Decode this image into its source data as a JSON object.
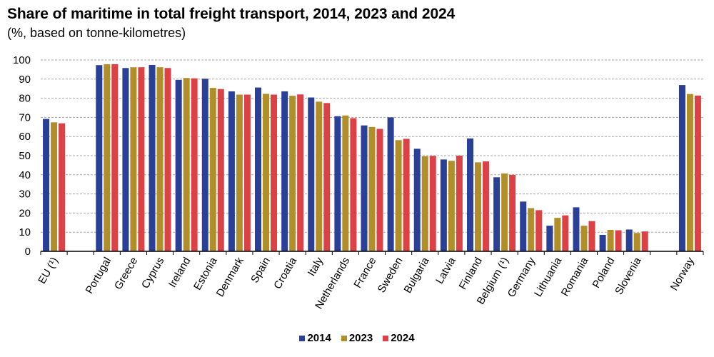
{
  "chart_data": {
    "type": "bar",
    "title": "Share of maritime in total freight transport, 2014, 2023 and 2024",
    "subtitle": "(%, based on tonne-kilometres)",
    "xlabel": "",
    "ylabel": "",
    "ylim": [
      0,
      100
    ],
    "yticks": [
      0,
      10,
      20,
      30,
      40,
      50,
      60,
      70,
      80,
      90,
      100
    ],
    "grid": true,
    "legend_position": "bottom-center",
    "categories": [
      "EU (¹)",
      "",
      "Portugal",
      "Greece",
      "Cyprus",
      "Ireland",
      "Estonia",
      "Denmark",
      "Spain",
      "Croatia",
      "Italy",
      "Netherlands",
      "France",
      "Sweden",
      "Bulgaria",
      "Latvia",
      "Finland",
      "Belgium (¹)",
      "Germany",
      "Lithuania",
      "Romania",
      "Poland",
      "Slovenia",
      "",
      "Norway"
    ],
    "series": [
      {
        "name": "2014",
        "color": "#2a3f96",
        "values": [
          69.2,
          null,
          97.3,
          95.8,
          97.4,
          89.6,
          90.2,
          83.6,
          85.6,
          83.6,
          80.4,
          70.6,
          65.8,
          70.0,
          53.6,
          48.0,
          59.0,
          38.7,
          26.0,
          13.4,
          23.0,
          8.6,
          11.4,
          null,
          86.9
        ]
      },
      {
        "name": "2023",
        "color": "#b08e2a",
        "values": [
          67.4,
          null,
          97.8,
          96.2,
          96.2,
          90.6,
          85.4,
          81.9,
          82.3,
          81.3,
          78.2,
          71.0,
          65.0,
          58.1,
          49.7,
          47.3,
          46.5,
          40.7,
          22.6,
          17.5,
          13.4,
          11.2,
          9.6,
          null,
          82.2
        ]
      },
      {
        "name": "2024",
        "color": "#dc4146",
        "values": [
          66.9,
          null,
          97.8,
          96.2,
          95.8,
          90.4,
          84.8,
          81.9,
          81.9,
          82.0,
          77.5,
          69.6,
          64.0,
          58.8,
          49.9,
          50.0,
          47.0,
          40.0,
          21.5,
          18.8,
          15.8,
          11.0,
          10.4,
          null,
          81.4
        ]
      }
    ]
  }
}
